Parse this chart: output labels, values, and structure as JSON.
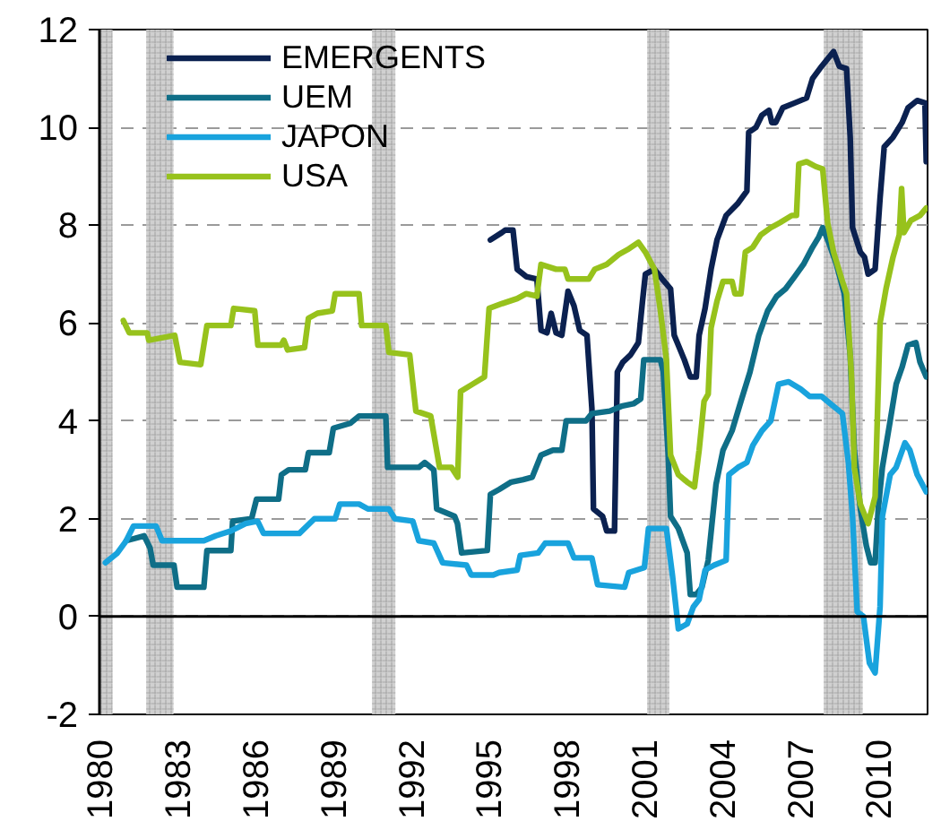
{
  "chart_data": {
    "type": "line",
    "xlim": [
      1980,
      2011.9
    ],
    "xticks": [
      1980,
      1983,
      1986,
      1989,
      1992,
      1995,
      1998,
      2001,
      2004,
      2007,
      2010
    ],
    "ylim": [
      -2,
      12
    ],
    "yticks": [
      -2,
      0,
      2,
      4,
      6,
      8,
      10,
      12
    ],
    "grid": "y",
    "legend": "top left",
    "ref_lines": [
      {
        "axis": "y",
        "value": 0,
        "color": "#000000"
      }
    ],
    "bands": [
      {
        "axis": "x",
        "from": 1980.0,
        "to": 1980.5,
        "color": "#d0d0d0"
      },
      {
        "axis": "x",
        "from": 1981.8,
        "to": 1982.85,
        "color": "#d0d0d0"
      },
      {
        "axis": "x",
        "from": 1990.5,
        "to": 1991.4,
        "color": "#d0d0d0"
      },
      {
        "axis": "x",
        "from": 2001.1,
        "to": 2001.95,
        "color": "#d0d0d0"
      },
      {
        "axis": "x",
        "from": 2007.9,
        "to": 2009.4,
        "color": "#d0d0d0"
      }
    ],
    "series": [
      {
        "name": "EMERGENTS",
        "color": "#0b2150",
        "x": [
          1995.06,
          1995.5,
          1995.63,
          1995.93,
          1996.09,
          1996.44,
          1996.85,
          1997.01,
          1997.24,
          1997.4,
          1997.59,
          1997.81,
          1998.05,
          1998.28,
          1998.5,
          1998.78,
          1998.97,
          1999.03,
          1999.38,
          1999.54,
          1999.84,
          1999.95,
          2000.16,
          2000.46,
          2000.76,
          2000.92,
          2001.03,
          2001.38,
          2001.68,
          2002.0,
          2002.14,
          2002.53,
          2002.76,
          2002.99,
          2003.1,
          2003.33,
          2003.56,
          2003.79,
          2004.14,
          2004.6,
          2004.94,
          2005.01,
          2005.29,
          2005.52,
          2005.79,
          2005.9,
          2006.05,
          2006.32,
          2006.78,
          2007.24,
          2007.47,
          2007.82,
          2008.05,
          2008.28,
          2008.5,
          2008.78,
          2008.92,
          2009.01,
          2009.31,
          2009.47,
          2009.61,
          2009.88,
          2010.07,
          2010.23,
          2010.57,
          2010.92,
          2011.15,
          2011.5,
          2011.8,
          2011.85
        ],
        "values": [
          7.7,
          7.85,
          7.9,
          7.9,
          7.1,
          6.95,
          6.9,
          5.85,
          5.8,
          6.2,
          5.8,
          5.75,
          6.65,
          6.35,
          5.85,
          5.75,
          4.25,
          2.2,
          2.05,
          1.75,
          1.75,
          5.0,
          5.2,
          5.35,
          5.6,
          6.45,
          7.0,
          7.1,
          6.9,
          6.7,
          5.75,
          5.25,
          4.9,
          4.9,
          5.75,
          6.3,
          7.1,
          7.7,
          8.2,
          8.45,
          8.7,
          9.9,
          10.0,
          10.25,
          10.35,
          10.1,
          10.1,
          10.4,
          10.5,
          10.6,
          11.0,
          11.25,
          11.4,
          11.55,
          11.25,
          11.2,
          9.8,
          7.95,
          7.45,
          7.35,
          7.0,
          7.1,
          8.55,
          9.6,
          9.8,
          10.1,
          10.4,
          10.55,
          10.5,
          9.3
        ]
      },
      {
        "name": "UEM",
        "color": "#0f6e87",
        "x": [
          1981.03,
          1981.72,
          1981.95,
          1982.07,
          1982.87,
          1982.99,
          1984.02,
          1984.14,
          1985.06,
          1985.13,
          1985.86,
          1986.05,
          1986.9,
          1987.01,
          1987.29,
          1987.93,
          1988.05,
          1988.85,
          1989.01,
          1989.66,
          1990.0,
          1991.03,
          1991.1,
          1992.3,
          1992.53,
          1992.88,
          1992.99,
          1993.68,
          1993.79,
          1993.95,
          1994.94,
          1995.06,
          1995.4,
          1995.86,
          1996.32,
          1996.67,
          1997.01,
          1997.47,
          1997.81,
          1997.98,
          1998.74,
          1998.97,
          1999.66,
          2000.11,
          2000.57,
          2000.85,
          2000.97,
          2001.61,
          2001.72,
          2001.91,
          2002.0,
          2002.3,
          2002.64,
          2002.76,
          2002.99,
          2003.21,
          2003.45,
          2003.75,
          2004.02,
          2004.37,
          2004.71,
          2005.06,
          2005.4,
          2005.74,
          2006.09,
          2006.43,
          2006.78,
          2007.12,
          2007.47,
          2007.7,
          2007.86,
          2008.09,
          2008.39,
          2008.69,
          2008.92,
          2009.08,
          2009.31,
          2009.54,
          2009.71,
          2009.88,
          2010.0,
          2010.16,
          2010.46,
          2010.69,
          2010.92,
          2011.15,
          2011.45,
          2011.61,
          2011.85
        ],
        "values": [
          1.55,
          1.65,
          1.4,
          1.05,
          1.05,
          0.6,
          0.6,
          1.35,
          1.35,
          1.95,
          2.0,
          2.4,
          2.4,
          2.9,
          3.0,
          3.0,
          3.35,
          3.35,
          3.85,
          3.95,
          4.1,
          4.1,
          3.05,
          3.05,
          3.15,
          3.0,
          2.2,
          2.05,
          1.9,
          1.3,
          1.35,
          2.5,
          2.6,
          2.75,
          2.8,
          2.85,
          3.3,
          3.4,
          3.4,
          4.0,
          4.0,
          4.15,
          4.2,
          4.3,
          4.35,
          4.45,
          5.25,
          5.25,
          5.0,
          3.3,
          2.05,
          1.8,
          1.3,
          0.45,
          0.45,
          0.6,
          1.15,
          2.7,
          3.4,
          3.8,
          4.4,
          5.0,
          5.75,
          6.25,
          6.55,
          6.7,
          6.95,
          7.2,
          7.55,
          7.75,
          7.95,
          7.65,
          7.2,
          6.6,
          5.35,
          3.4,
          2.2,
          1.45,
          1.1,
          1.1,
          2.2,
          3.05,
          4.0,
          4.75,
          5.1,
          5.55,
          5.6,
          5.2,
          4.9
        ]
      },
      {
        "name": "JAPON",
        "color": "#19a3dd",
        "x": [
          1980.23,
          1980.69,
          1981.03,
          1981.31,
          1982.18,
          1982.41,
          1984.02,
          1984.48,
          1985.06,
          1985.63,
          1986.09,
          1986.32,
          1987.01,
          1987.7,
          1988.28,
          1989.08,
          1989.26,
          1990.0,
          1990.34,
          1991.15,
          1991.38,
          1992.07,
          1992.3,
          1992.88,
          1993.22,
          1994.14,
          1994.32,
          1995.17,
          1995.4,
          1996.09,
          1996.21,
          1996.9,
          1997.17,
          1998.05,
          1998.28,
          1998.97,
          1999.19,
          2000.23,
          2000.39,
          2000.99,
          2001.15,
          2001.84,
          2002.07,
          2002.3,
          2002.64,
          2002.88,
          2003.1,
          2003.33,
          2003.68,
          2004.14,
          2004.25,
          2004.6,
          2004.94,
          2005.17,
          2005.52,
          2005.86,
          2006.16,
          2006.55,
          2007.01,
          2007.36,
          2007.82,
          2008.16,
          2008.62,
          2008.85,
          2009.01,
          2009.19,
          2009.43,
          2009.66,
          2009.88,
          2010.07,
          2010.16,
          2010.46,
          2010.69,
          2011.03,
          2011.22,
          2011.5,
          2011.85
        ],
        "values": [
          1.1,
          1.3,
          1.55,
          1.85,
          1.85,
          1.55,
          1.55,
          1.65,
          1.75,
          1.9,
          1.95,
          1.7,
          1.7,
          1.7,
          2.0,
          2.0,
          2.3,
          2.3,
          2.2,
          2.2,
          2.0,
          1.95,
          1.55,
          1.5,
          1.1,
          1.05,
          0.85,
          0.85,
          0.9,
          0.95,
          1.25,
          1.3,
          1.5,
          1.5,
          1.2,
          1.2,
          0.65,
          0.6,
          0.9,
          1.0,
          1.8,
          1.8,
          0.85,
          -0.25,
          -0.15,
          0.2,
          0.35,
          0.95,
          1.05,
          1.15,
          2.9,
          3.05,
          3.15,
          3.5,
          3.8,
          4.0,
          4.75,
          4.8,
          4.65,
          4.5,
          4.5,
          4.35,
          4.15,
          3.15,
          2.05,
          0.1,
          0.0,
          -0.95,
          -1.15,
          0.2,
          2.05,
          2.9,
          3.05,
          3.55,
          3.4,
          2.9,
          2.55
        ]
      },
      {
        "name": "USA",
        "color": "#97c21c",
        "x": [
          1980.92,
          1981.15,
          1981.84,
          1981.9,
          1982.4,
          1982.9,
          1983.1,
          1983.9,
          1984.14,
          1985.06,
          1985.17,
          1985.98,
          1986.1,
          1987.0,
          1987.1,
          1987.25,
          1987.9,
          1988.05,
          1988.4,
          1988.97,
          1989.08,
          1990.0,
          1990.1,
          1991.03,
          1991.15,
          1991.95,
          1992.19,
          1992.76,
          1993.1,
          1993.56,
          1993.8,
          1993.91,
          1994.37,
          1994.83,
          1995.01,
          1995.52,
          1996.09,
          1996.44,
          1996.85,
          1997.01,
          1997.59,
          1997.93,
          1998.05,
          1998.85,
          1999.08,
          1999.54,
          2000.0,
          2000.34,
          2000.76,
          2001.03,
          2001.38,
          2001.61,
          2001.84,
          2002.0,
          2002.3,
          2002.64,
          2002.92,
          2003.1,
          2003.29,
          2003.45,
          2003.56,
          2003.79,
          2004.02,
          2004.37,
          2004.48,
          2004.71,
          2004.88,
          2005.17,
          2005.47,
          2005.86,
          2006.21,
          2006.67,
          2006.85,
          2006.94,
          2007.24,
          2007.59,
          2007.86,
          2008.05,
          2008.28,
          2008.62,
          2008.78,
          2008.97,
          2009.08,
          2009.31,
          2009.61,
          2009.88,
          2010.07,
          2010.3,
          2010.57,
          2010.81,
          2010.9,
          2010.99,
          2011.26,
          2011.61,
          2011.85
        ],
        "values": [
          6.05,
          5.8,
          5.8,
          5.65,
          5.7,
          5.75,
          5.2,
          5.15,
          5.95,
          5.95,
          6.3,
          6.25,
          5.55,
          5.55,
          5.65,
          5.45,
          5.5,
          6.1,
          6.2,
          6.25,
          6.6,
          6.6,
          5.95,
          5.95,
          5.4,
          5.35,
          4.2,
          4.1,
          3.05,
          3.05,
          2.85,
          4.6,
          4.75,
          4.9,
          6.3,
          6.4,
          6.5,
          6.6,
          6.55,
          7.2,
          7.1,
          7.1,
          6.9,
          6.9,
          7.1,
          7.2,
          7.4,
          7.5,
          7.65,
          7.45,
          7.1,
          6.25,
          5.25,
          3.3,
          2.9,
          2.75,
          2.65,
          3.4,
          4.4,
          4.55,
          5.9,
          6.45,
          6.85,
          6.85,
          6.6,
          6.6,
          7.45,
          7.55,
          7.8,
          7.95,
          8.05,
          8.2,
          8.2,
          9.25,
          9.3,
          9.2,
          9.15,
          8.05,
          7.45,
          6.85,
          6.6,
          4.9,
          3.05,
          2.3,
          1.9,
          2.45,
          6.0,
          6.7,
          7.35,
          7.8,
          8.75,
          7.85,
          8.1,
          8.2,
          8.35
        ]
      }
    ]
  }
}
